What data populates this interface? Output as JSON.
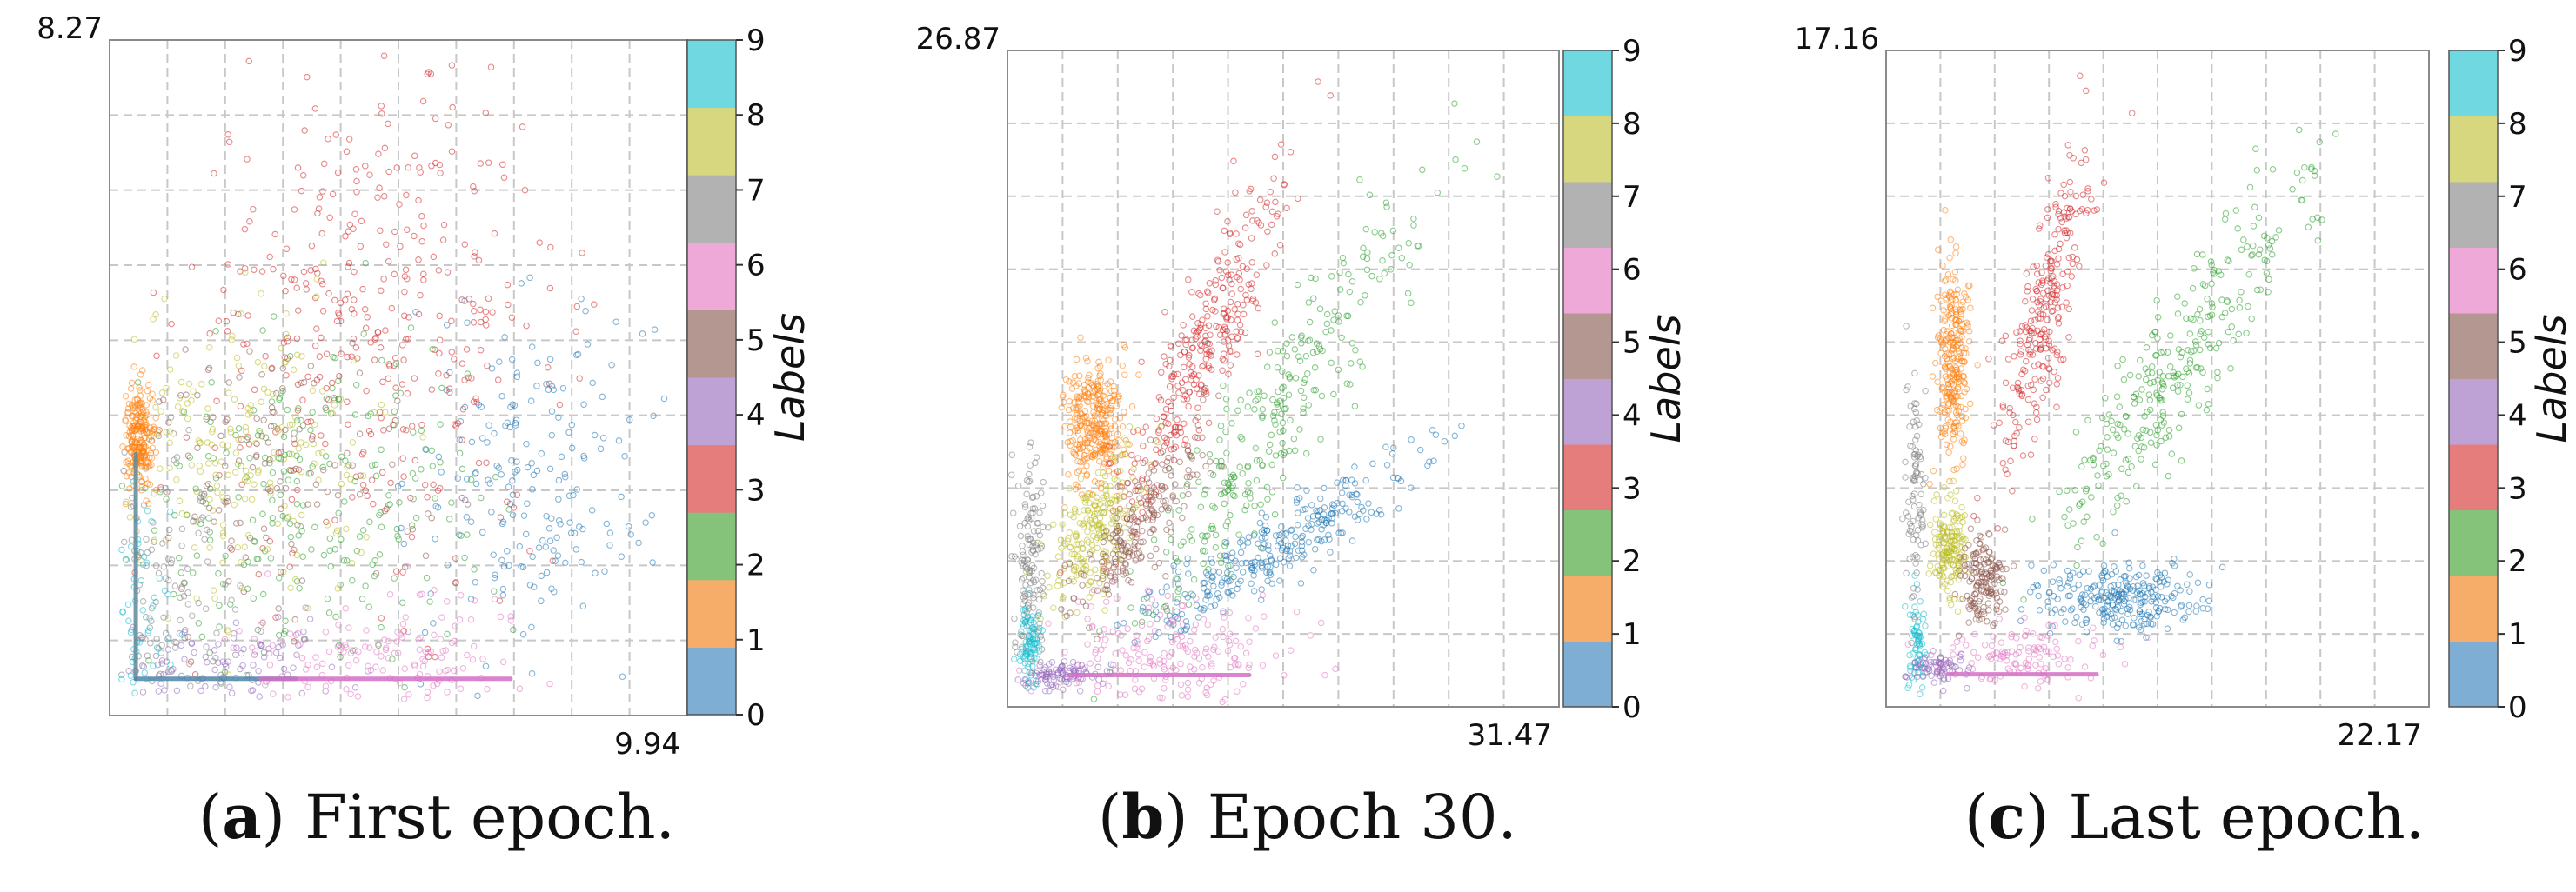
{
  "colorbar": {
    "title": "Labels",
    "ticks": [
      "0",
      "1",
      "2",
      "3",
      "4",
      "5",
      "6",
      "7",
      "8",
      "9"
    ],
    "colors": [
      "#7faed4",
      "#f7ad6a",
      "#86c37a",
      "#e57d7d",
      "#bea2d6",
      "#b59791",
      "#efa9d8",
      "#b2b2b2",
      "#d6d77e",
      "#6fd8e1"
    ]
  },
  "panels": [
    {
      "letter": "a",
      "caption": "First epoch.",
      "chart_data": {
        "type": "scatter",
        "x_max_label": "9.94",
        "y_max_label": "8.27",
        "xlim": [
          0,
          9.94
        ],
        "ylim": [
          0,
          8.27
        ],
        "grid": true,
        "clusters": [
          {
            "label": 3,
            "color": "#d62728",
            "cx": 4.6,
            "cy": 4.8,
            "sx": 1.6,
            "sy": 1.5,
            "n": 380
          },
          {
            "label": 0,
            "color": "#1f77b4",
            "cx": 7.2,
            "cy": 2.9,
            "sx": 1.0,
            "sy": 1.1,
            "n": 200
          },
          {
            "label": 2,
            "color": "#2ca02c",
            "cx": 3.5,
            "cy": 2.6,
            "sx": 1.6,
            "sy": 1.1,
            "n": 260
          },
          {
            "label": 8,
            "color": "#bcbd22",
            "cx": 2.4,
            "cy": 3.2,
            "sx": 1.2,
            "sy": 0.9,
            "n": 200
          },
          {
            "label": 5,
            "color": "#8c564b",
            "cx": 2.8,
            "cy": 3.0,
            "sx": 1.3,
            "sy": 0.9,
            "n": 130
          },
          {
            "label": 6,
            "color": "#e377c2",
            "cx": 4.6,
            "cy": 0.8,
            "sx": 1.3,
            "sy": 0.4,
            "n": 150
          },
          {
            "label": 7,
            "color": "#7f7f7f",
            "cx": 1.0,
            "cy": 1.5,
            "sx": 0.6,
            "sy": 1.0,
            "n": 130
          },
          {
            "label": 4,
            "color": "#9467bd",
            "cx": 2.0,
            "cy": 0.6,
            "sx": 1.0,
            "sy": 0.3,
            "n": 110
          },
          {
            "label": 9,
            "color": "#17becf",
            "cx": 0.5,
            "cy": 1.0,
            "sx": 0.3,
            "sy": 0.8,
            "n": 80
          },
          {
            "label": 1,
            "color": "#ff7f0e",
            "cx": 0.5,
            "cy": 3.4,
            "sx": 0.12,
            "sy": 0.3,
            "n": 220
          }
        ],
        "lines": [
          {
            "label": 7,
            "color": "#5f8a99",
            "x": [
              0.45,
              0.45
            ],
            "y": [
              0.45,
              3.2
            ]
          },
          {
            "label": 0,
            "color": "#4f86a8",
            "x": [
              0.45,
              3.2
            ],
            "y": [
              0.45,
              0.45
            ]
          },
          {
            "label": 6,
            "color": "#d36fc4",
            "x": [
              2.6,
              6.9
            ],
            "y": [
              0.45,
              0.45
            ]
          }
        ]
      }
    },
    {
      "letter": "b",
      "caption": "Epoch 30.",
      "chart_data": {
        "type": "scatter",
        "x_max_label": "31.47",
        "y_max_label": "26.87",
        "xlim": [
          0,
          31.47
        ],
        "ylim": [
          0,
          26.87
        ],
        "grid": true,
        "clusters": [
          {
            "label": 1,
            "color": "#ff7f0e",
            "cx": 5.0,
            "cy": 11.5,
            "sx": 0.8,
            "sy": 1.3,
            "n": 300
          },
          {
            "label": 3,
            "color": "#d62728",
            "cx": 11.0,
            "cy": 14.5,
            "sx": 2.6,
            "sy": 4.0,
            "corr": 0.9,
            "n": 320
          },
          {
            "label": 2,
            "color": "#2ca02c",
            "cx": 15.5,
            "cy": 12.0,
            "sx": 4.2,
            "sy": 4.5,
            "corr": 0.92,
            "n": 300
          },
          {
            "label": 0,
            "color": "#1f77b4",
            "cx": 15.5,
            "cy": 6.6,
            "sx": 4.0,
            "sy": 1.8,
            "corr": 0.9,
            "n": 300
          },
          {
            "label": 8,
            "color": "#bcbd22",
            "cx": 5.0,
            "cy": 7.2,
            "sx": 1.2,
            "sy": 1.5,
            "corr": 0.6,
            "n": 220
          },
          {
            "label": 5,
            "color": "#8c564b",
            "cx": 7.5,
            "cy": 7.5,
            "sx": 1.8,
            "sy": 1.8,
            "corr": 0.8,
            "n": 200
          },
          {
            "label": 6,
            "color": "#e377c2",
            "cx": 9.5,
            "cy": 2.2,
            "sx": 3.5,
            "sy": 1.2,
            "n": 200
          },
          {
            "label": 7,
            "color": "#7f7f7f",
            "cx": 1.3,
            "cy": 6.0,
            "sx": 0.4,
            "sy": 2.5,
            "n": 140
          },
          {
            "label": 9,
            "color": "#17becf",
            "cx": 1.3,
            "cy": 2.5,
            "sx": 0.3,
            "sy": 0.8,
            "n": 90
          },
          {
            "label": 4,
            "color": "#9467bd",
            "cx": 3.0,
            "cy": 1.3,
            "sx": 1.0,
            "sy": 0.3,
            "n": 90
          }
        ],
        "lines": [
          {
            "label": 6,
            "color": "#d36fc4",
            "x": [
              3.5,
              13.8
            ],
            "y": [
              1.3,
              1.3
            ]
          }
        ]
      }
    },
    {
      "letter": "c",
      "caption": "Last epoch.",
      "chart_data": {
        "type": "scatter",
        "x_max_label": "22.17",
        "y_max_label": "17.16",
        "xlim": [
          0,
          22.17
        ],
        "ylim": [
          0,
          17.16
        ],
        "grid": true,
        "clusters": [
          {
            "label": 1,
            "color": "#ff7f0e",
            "cx": 2.7,
            "cy": 9.0,
            "sx": 0.35,
            "sy": 1.3,
            "n": 260
          },
          {
            "label": 3,
            "color": "#d62728",
            "cx": 6.5,
            "cy": 10.3,
            "sx": 0.9,
            "sy": 2.0,
            "corr": 0.8,
            "n": 260
          },
          {
            "label": 2,
            "color": "#2ca02c",
            "cx": 12.0,
            "cy": 9.0,
            "sx": 2.8,
            "sy": 2.6,
            "corr": 0.92,
            "n": 300
          },
          {
            "label": 0,
            "color": "#1f77b4",
            "cx": 9.5,
            "cy": 2.8,
            "sx": 1.8,
            "sy": 0.45,
            "n": 260
          },
          {
            "label": 8,
            "color": "#bcbd22",
            "cx": 2.6,
            "cy": 4.1,
            "sx": 0.35,
            "sy": 0.6,
            "n": 160
          },
          {
            "label": 5,
            "color": "#8c564b",
            "cx": 4.0,
            "cy": 3.3,
            "sx": 0.45,
            "sy": 0.6,
            "n": 160
          },
          {
            "label": 6,
            "color": "#e377c2",
            "cx": 5.5,
            "cy": 1.3,
            "sx": 1.8,
            "sy": 0.4,
            "n": 120
          },
          {
            "label": 7,
            "color": "#7f7f7f",
            "cx": 1.2,
            "cy": 5.2,
            "sx": 0.2,
            "sy": 1.6,
            "n": 90
          },
          {
            "label": 9,
            "color": "#17becf",
            "cx": 1.2,
            "cy": 1.6,
            "sx": 0.2,
            "sy": 0.6,
            "n": 70
          },
          {
            "label": 4,
            "color": "#9467bd",
            "cx": 2.2,
            "cy": 1.0,
            "sx": 0.6,
            "sy": 0.2,
            "n": 70
          }
        ],
        "lines": [
          {
            "label": 6,
            "color": "#d36fc4",
            "x": [
              2.5,
              8.6
            ],
            "y": [
              0.85,
              0.85
            ]
          }
        ]
      }
    }
  ]
}
